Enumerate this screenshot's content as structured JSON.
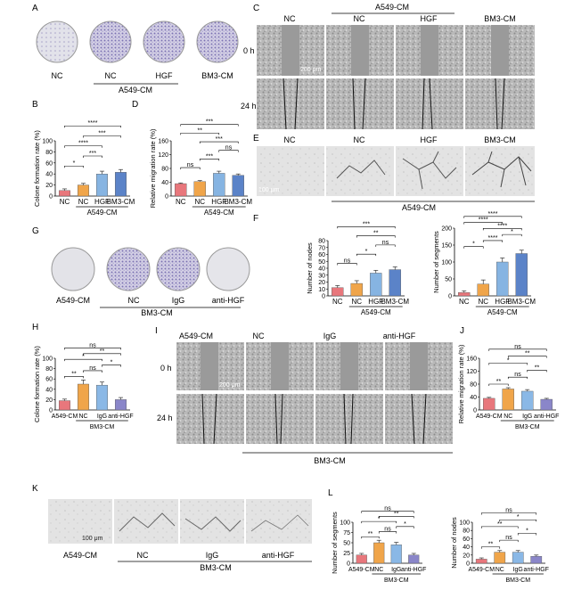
{
  "panels": [
    "A",
    "B",
    "C",
    "D",
    "E",
    "F",
    "G",
    "H",
    "I",
    "J",
    "K",
    "L"
  ],
  "colors": {
    "nc_red": "#e8777c",
    "nc_orange": "#f0a54a",
    "hgf_blue": "#86b4e2",
    "bm3_blue": "#5b83c8",
    "cm_red": "#e8777c",
    "igg_blue": "#8ab8e6",
    "anti_purple": "#8a86c9"
  },
  "panelA": {
    "labels": [
      "NC",
      "NC",
      "HGF",
      "BM3-CM"
    ],
    "group": "A549-CM"
  },
  "panelC": {
    "top_group": "A549-CM",
    "cols": [
      "NC",
      "NC",
      "HGF",
      "BM3-CM"
    ],
    "rows": [
      "0 h",
      "24 h"
    ],
    "scale": "200 μm"
  },
  "panelE": {
    "cols": [
      "NC",
      "NC",
      "HGF",
      "BM3-CM"
    ],
    "group": "A549-CM",
    "scale": "100 μm"
  },
  "panelG": {
    "labels": [
      "A549-CM",
      "NC",
      "IgG",
      "anti-HGF"
    ],
    "group": "BM3-CM"
  },
  "panelI": {
    "cols": [
      "A549-CM",
      "NC",
      "IgG",
      "anti-HGF"
    ],
    "rows": [
      "0 h",
      "24 h"
    ],
    "group": "BM3-CM",
    "scale": "200 μm"
  },
  "panelK": {
    "labels": [
      "A549-CM",
      "NC",
      "IgG",
      "anti-HGF"
    ],
    "group": "BM3-CM",
    "scale": "100 μm"
  },
  "chart_data": [
    {
      "id": "B",
      "type": "bar",
      "ylabel": "Colone formation rate (%)",
      "categories": [
        "NC",
        "NC",
        "HGF",
        "BM3-CM"
      ],
      "group": "A549-CM",
      "ylim": [
        0,
        100
      ],
      "yticks": [
        0,
        20,
        40,
        60,
        80,
        100
      ],
      "values": [
        10,
        20,
        40,
        43
      ],
      "errors": [
        3,
        3,
        5,
        5
      ],
      "sig": [
        "*",
        "***",
        "****",
        "***",
        "****"
      ]
    },
    {
      "id": "D",
      "type": "bar",
      "ylabel": "Relative migration rate (%)",
      "categories": [
        "NC",
        "NC",
        "HGF",
        "BM3-CM"
      ],
      "group": "A549-CM",
      "ylim": [
        0,
        160
      ],
      "yticks": [
        0,
        40,
        80,
        120,
        160
      ],
      "values": [
        36,
        42,
        66,
        60
      ],
      "errors": [
        2,
        3,
        6,
        4
      ],
      "sig": [
        "ns",
        "***",
        "ns",
        "***",
        "**",
        "***"
      ]
    },
    {
      "id": "F1",
      "type": "bar",
      "ylabel": "Number of nodes",
      "categories": [
        "NC",
        "NC",
        "HGF",
        "BM3-CM"
      ],
      "group": "A549-CM",
      "ylim": [
        0,
        80
      ],
      "yticks": [
        0,
        10,
        20,
        30,
        40,
        50,
        60,
        70,
        80
      ],
      "values": [
        12,
        18,
        33,
        38
      ],
      "errors": [
        3,
        4,
        4,
        4
      ],
      "sig": [
        "ns",
        "*",
        "ns",
        "**",
        "***"
      ]
    },
    {
      "id": "F2",
      "type": "bar",
      "ylabel": "Number of segments",
      "categories": [
        "NC",
        "NC",
        "HGF",
        "BM3-CM"
      ],
      "group": "A549-CM",
      "ylim": [
        0,
        200
      ],
      "yticks": [
        0,
        50,
        100,
        150,
        200
      ],
      "values": [
        10,
        35,
        100,
        125
      ],
      "errors": [
        5,
        12,
        12,
        10
      ],
      "sig": [
        "*",
        "****",
        "*",
        "****",
        "****",
        "****"
      ]
    },
    {
      "id": "H",
      "type": "bar",
      "ylabel": "Colone formation rate (%)",
      "categories": [
        "A549-CM",
        "NC",
        "IgG",
        "anti-HGF"
      ],
      "group": "BM3-CM",
      "ylim": [
        0,
        100
      ],
      "yticks": [
        0,
        20,
        40,
        60,
        80,
        100
      ],
      "values": [
        18,
        50,
        48,
        20
      ],
      "errors": [
        3,
        8,
        6,
        4
      ],
      "sig": [
        "**",
        "ns",
        "*",
        "*",
        "**",
        "ns"
      ]
    },
    {
      "id": "J",
      "type": "bar",
      "ylabel": "Relative migration rate (%)",
      "categories": [
        "A549-CM",
        "NC",
        "IgG",
        "anti-HGF"
      ],
      "group": "BM3-CM",
      "ylim": [
        0,
        160
      ],
      "yticks": [
        0,
        40,
        80,
        120,
        160
      ],
      "values": [
        36,
        65,
        58,
        33
      ],
      "errors": [
        3,
        4,
        5,
        3
      ],
      "sig": [
        "**",
        "ns",
        "**",
        "*",
        "**",
        "ns"
      ]
    },
    {
      "id": "L1",
      "type": "bar",
      "ylabel": "Number of segments",
      "categories": [
        "A549-CM",
        "NC",
        "IgG",
        "anti-HGF"
      ],
      "group": "BM3-CM",
      "ylim": [
        0,
        100
      ],
      "yticks": [
        0,
        25,
        50,
        75,
        100
      ],
      "values": [
        20,
        50,
        45,
        20
      ],
      "errors": [
        4,
        6,
        6,
        4
      ],
      "sig": [
        "**",
        "ns",
        "*",
        "*",
        "**",
        "ns"
      ]
    },
    {
      "id": "L2",
      "type": "bar",
      "ylabel": "Number of nodes",
      "categories": [
        "A549-CM",
        "NC",
        "IgG",
        "anti-HGF"
      ],
      "group": "BM3-CM",
      "ylim": [
        0,
        100
      ],
      "yticks": [
        0,
        20,
        40,
        60,
        80,
        100
      ],
      "values": [
        10,
        27,
        27,
        17
      ],
      "errors": [
        3,
        4,
        4,
        3
      ],
      "sig": [
        "**",
        "ns",
        "*",
        "**",
        "*",
        "ns"
      ]
    }
  ]
}
